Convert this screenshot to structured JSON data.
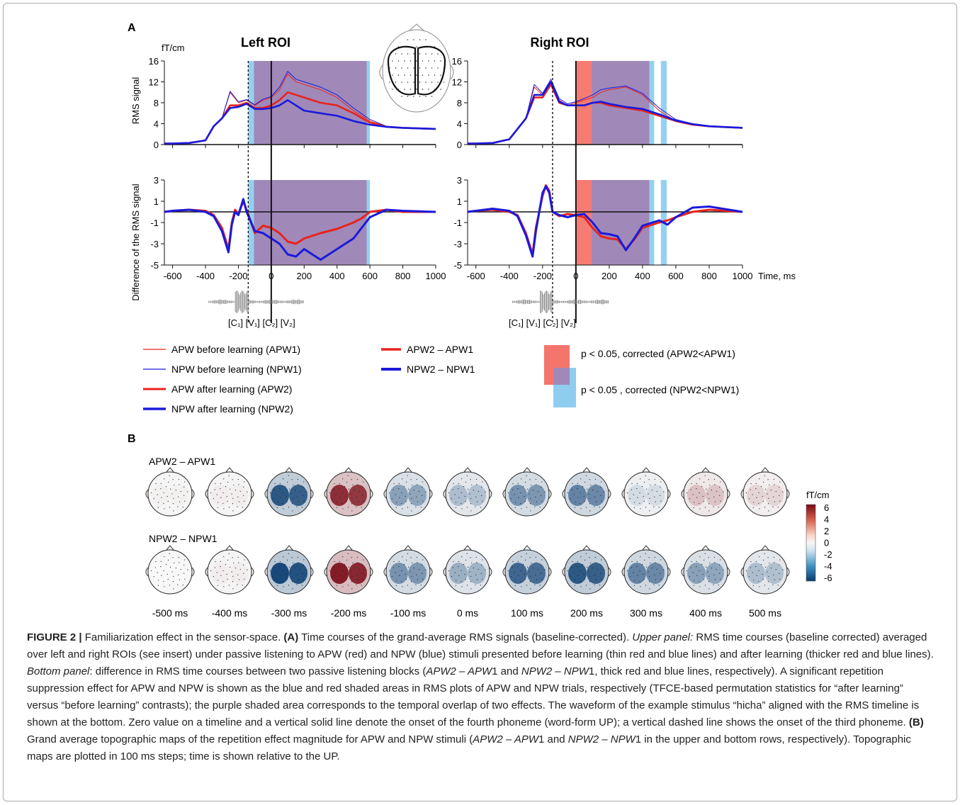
{
  "panel_a": {
    "label": "A",
    "unit": "fT/cm",
    "left_title": "Left ROI",
    "right_title": "Right ROI",
    "ylabel_top": "RMS signal",
    "ylabel_bottom": "Difference of the RMS signal",
    "xlabel": "Time, ms",
    "phoneme_labels": "[C₁] [V₁] [C₂] [V₂]"
  },
  "legend": {
    "apw1": "APW before learning (APW1)",
    "npw1": "NPW before learning (NPW1)",
    "apw2": "APW after learning (APW2)",
    "npw2": "NPW after learning (NPW2)",
    "diff_apw": "APW2 – APW1",
    "diff_npw": "NPW2 – NPW1",
    "sig_apw": "p < 0.05, corrected (APW2<APW1)",
    "sig_npw": "p < 0.05 , corrected (NPW2<NPW1)"
  },
  "panel_b": {
    "label": "B",
    "row1": "APW2 – APW1",
    "row2": "NPW2 – NPW1",
    "times": [
      "-500 ms",
      "-400 ms",
      "-300 ms",
      "-200 ms",
      "-100 ms",
      "0 ms",
      "100 ms",
      "200 ms",
      "300 ms",
      "400 ms",
      "500 ms"
    ],
    "colorbar_unit": "fT/cm",
    "colorbar_ticks": [
      "6",
      "4",
      "2",
      "0",
      "-2",
      "-4",
      "-6"
    ]
  },
  "colors": {
    "apw": "#e8231f",
    "npw": "#1a1adc",
    "sig_apw": "#f4756b",
    "sig_npw": "#8fcdf0",
    "overlap": "#a089b8"
  },
  "chart_data": [
    {
      "type": "line",
      "title": "Left ROI",
      "ylabel": "RMS signal",
      "xlim": [
        -650,
        1000
      ],
      "ylim": [
        0,
        16
      ],
      "x_ticks": [
        -600,
        -400,
        -200,
        0,
        200,
        400,
        600,
        800,
        1000
      ],
      "y_ticks": [
        0,
        4,
        8,
        12,
        16
      ],
      "x": [
        -650,
        -600,
        -500,
        -400,
        -350,
        -300,
        -250,
        -200,
        -150,
        -100,
        -50,
        0,
        50,
        100,
        150,
        200,
        300,
        400,
        500,
        600,
        700,
        800,
        1000
      ],
      "series": [
        {
          "name": "APW before learning (APW1)",
          "values": [
            0.2,
            0.2,
            0.3,
            0.8,
            3.5,
            5.0,
            10.0,
            8.0,
            8.5,
            7.5,
            8.5,
            9.0,
            10.5,
            13.5,
            12.0,
            11.5,
            10.5,
            9.0,
            6.5,
            4.5,
            3.5,
            3.2,
            3.0
          ]
        },
        {
          "name": "NPW before learning (NPW1)",
          "values": [
            0.2,
            0.2,
            0.3,
            0.8,
            3.5,
            5.0,
            10.2,
            8.2,
            8.6,
            7.6,
            8.7,
            9.2,
            11.0,
            14.0,
            12.5,
            12.0,
            11.0,
            9.5,
            7.0,
            4.8,
            3.5,
            3.2,
            3.0
          ]
        },
        {
          "name": "APW after learning (APW2)",
          "values": [
            0.2,
            0.2,
            0.3,
            0.8,
            3.5,
            5.0,
            7.5,
            7.5,
            8.0,
            7.0,
            7.0,
            7.5,
            8.5,
            10.0,
            9.5,
            9.0,
            8.0,
            7.5,
            6.0,
            4.2,
            3.4,
            3.2,
            3.0
          ]
        },
        {
          "name": "NPW after learning (NPW2)",
          "values": [
            0.2,
            0.2,
            0.3,
            0.8,
            3.5,
            5.0,
            7.0,
            7.2,
            7.8,
            6.8,
            6.8,
            7.0,
            7.5,
            8.5,
            7.5,
            6.5,
            6.0,
            5.5,
            4.5,
            3.8,
            3.4,
            3.2,
            3.0
          ]
        }
      ],
      "sig_apw": [
        [
          -105,
          580
        ]
      ],
      "sig_npw": [
        [
          -140,
          600
        ]
      ]
    },
    {
      "type": "line",
      "title": "Left ROI",
      "ylabel": "Difference of the RMS signal",
      "xlim": [
        -650,
        1000
      ],
      "ylim": [
        -5,
        3
      ],
      "x_ticks": [
        -600,
        -400,
        -200,
        0,
        200,
        400,
        600,
        800,
        1000
      ],
      "y_ticks": [
        -5,
        -3,
        -1,
        1,
        3
      ],
      "x": [
        -650,
        -600,
        -500,
        -400,
        -350,
        -300,
        -260,
        -240,
        -220,
        -200,
        -170,
        -150,
        -100,
        -50,
        0,
        50,
        100,
        150,
        200,
        300,
        400,
        500,
        550,
        600,
        700,
        800,
        1000
      ],
      "series": [
        {
          "name": "APW2 – APW1",
          "values": [
            0,
            0.1,
            0.2,
            0.1,
            -0.3,
            -1.5,
            -3.5,
            -1.0,
            0.2,
            -0.2,
            1.0,
            0.2,
            -2.0,
            -1.3,
            -1.5,
            -2.0,
            -2.8,
            -3.0,
            -2.5,
            -2.0,
            -1.6,
            -1.0,
            -0.6,
            0.0,
            0.2,
            0.0,
            0.0
          ]
        },
        {
          "name": "NPW2 – NPW1",
          "values": [
            0,
            0.1,
            0.2,
            0.0,
            -0.4,
            -1.8,
            -3.8,
            -1.2,
            0.0,
            -0.3,
            1.2,
            0.0,
            -1.8,
            -2.0,
            -2.5,
            -3.0,
            -4.0,
            -4.2,
            -3.5,
            -4.5,
            -3.5,
            -2.5,
            -1.5,
            -0.5,
            0.2,
            0.1,
            0.0
          ]
        }
      ],
      "sig_apw": [
        [
          -105,
          580
        ]
      ],
      "sig_npw": [
        [
          -140,
          600
        ]
      ]
    },
    {
      "type": "line",
      "title": "Right ROI",
      "ylabel": "RMS signal",
      "xlim": [
        -650,
        1000
      ],
      "ylim": [
        0,
        16
      ],
      "x_ticks": [
        -600,
        -400,
        -200,
        0,
        200,
        400,
        600,
        800,
        1000
      ],
      "y_ticks": [
        0,
        4,
        8,
        12,
        16
      ],
      "x": [
        -650,
        -600,
        -500,
        -400,
        -350,
        -300,
        -250,
        -200,
        -150,
        -100,
        -50,
        0,
        50,
        100,
        150,
        200,
        300,
        400,
        500,
        600,
        700,
        800,
        1000
      ],
      "series": [
        {
          "name": "APW before learning (APW1)",
          "values": [
            0.2,
            0.2,
            0.3,
            1.0,
            3.0,
            5.0,
            11.0,
            9.5,
            12.0,
            8.5,
            7.5,
            8.0,
            8.5,
            9.0,
            10.0,
            10.5,
            11.0,
            9.5,
            6.5,
            4.5,
            3.8,
            3.5,
            3.2
          ]
        },
        {
          "name": "NPW before learning (NPW1)",
          "values": [
            0.2,
            0.2,
            0.3,
            1.0,
            3.0,
            5.0,
            11.5,
            9.8,
            12.5,
            8.8,
            7.8,
            8.2,
            8.8,
            9.5,
            10.5,
            10.8,
            11.2,
            9.8,
            7.0,
            4.8,
            4.0,
            3.6,
            3.2
          ]
        },
        {
          "name": "APW after learning (APW2)",
          "values": [
            0.2,
            0.2,
            0.3,
            1.0,
            3.0,
            5.0,
            9.0,
            9.0,
            11.5,
            8.0,
            7.5,
            7.5,
            7.5,
            8.0,
            8.0,
            7.5,
            7.0,
            6.5,
            5.5,
            4.5,
            3.8,
            3.5,
            3.2
          ]
        },
        {
          "name": "NPW after learning (NPW2)",
          "values": [
            0.2,
            0.2,
            0.3,
            1.0,
            3.0,
            5.0,
            9.5,
            9.5,
            12.0,
            8.2,
            7.5,
            7.5,
            7.5,
            8.0,
            8.2,
            7.8,
            7.2,
            6.8,
            5.8,
            4.6,
            3.9,
            3.5,
            3.2
          ]
        }
      ],
      "sig_apw": [
        [
          0,
          440
        ]
      ],
      "sig_npw": [
        [
          95,
          470
        ],
        [
          510,
          545
        ]
      ]
    },
    {
      "type": "line",
      "title": "Right ROI",
      "ylabel": "Difference of the RMS signal",
      "xlim": [
        -650,
        1000
      ],
      "ylim": [
        -5,
        3
      ],
      "x_ticks": [
        -600,
        -400,
        -200,
        0,
        200,
        400,
        600,
        800,
        1000
      ],
      "y_ticks": [
        -5,
        -3,
        -1,
        1,
        3
      ],
      "x": [
        -650,
        -600,
        -500,
        -400,
        -350,
        -300,
        -260,
        -240,
        -200,
        -180,
        -160,
        -140,
        -100,
        -50,
        0,
        50,
        100,
        150,
        200,
        250,
        300,
        350,
        400,
        500,
        550,
        600,
        700,
        800,
        1000
      ],
      "series": [
        {
          "name": "APW2 – APW1",
          "values": [
            0,
            0.1,
            0.2,
            0.0,
            -0.3,
            -2.0,
            -4.0,
            -1.5,
            1.5,
            2.5,
            2.0,
            0.0,
            -0.4,
            -0.2,
            -0.3,
            -0.5,
            -1.5,
            -2.3,
            -2.5,
            -2.6,
            -3.5,
            -2.6,
            -1.5,
            -1.0,
            -0.8,
            -0.5,
            0.0,
            0.2,
            0.0
          ]
        },
        {
          "name": "NPW2 – NPW1",
          "values": [
            0,
            0.1,
            0.3,
            0.1,
            -0.4,
            -2.2,
            -4.2,
            -1.8,
            1.8,
            2.4,
            1.8,
            0.0,
            -0.3,
            -0.5,
            -0.3,
            -0.2,
            -1.0,
            -2.0,
            -2.1,
            -2.3,
            -3.6,
            -2.5,
            -1.3,
            -0.8,
            -1.2,
            -0.5,
            0.4,
            0.5,
            0.0
          ]
        }
      ],
      "sig_apw": [
        [
          0,
          440
        ]
      ],
      "sig_npw": [
        [
          95,
          470
        ],
        [
          510,
          545
        ]
      ]
    },
    {
      "type": "heatmap",
      "title": "APW2 – APW1",
      "x": [
        "-500 ms",
        "-400 ms",
        "-300 ms",
        "-200 ms",
        "-100 ms",
        "0 ms",
        "100 ms",
        "200 ms",
        "300 ms",
        "400 ms",
        "500 ms"
      ],
      "values": [
        0.2,
        0.3,
        -5.5,
        5.5,
        -3.0,
        -2.0,
        -3.5,
        -4.0,
        -1.0,
        1.5,
        1.0
      ],
      "ylim": [
        -6,
        6
      ]
    },
    {
      "type": "heatmap",
      "title": "NPW2 – NPW1",
      "x": [
        "-500 ms",
        "-400 ms",
        "-300 ms",
        "-200 ms",
        "-100 ms",
        "0 ms",
        "100 ms",
        "200 ms",
        "300 ms",
        "400 ms",
        "500 ms"
      ],
      "values": [
        0.0,
        0.3,
        -6.0,
        6.0,
        -3.5,
        -2.5,
        -5.0,
        -5.5,
        -4.0,
        -3.0,
        -2.0
      ],
      "ylim": [
        -6,
        6
      ]
    }
  ],
  "caption": {
    "fig_label": "FIGURE 2 |",
    "t1": " Familiarization effect in the sensor-space. ",
    "a": "(A)",
    "t2": " Time courses of the grand-average RMS signals (baseline-corrected). ",
    "upper": "Upper panel:",
    "t3": " RMS time courses (baseline corrected) averaged over left and right ROIs (see insert) under passive listening to APW (red) and NPW (blue) stimuli presented before learning (thin red and blue lines) and after learning (thicker red and blue lines). ",
    "bottom": "Bottom panel",
    "t4": ": difference in RMS time courses between two passive listening blocks (",
    "e1": "APW2 – APW",
    "t5": "1 and ",
    "e2": "NPW2 – NPW",
    "t6": "1, thick red and blue lines, respectively). A significant repetition suppression effect for APW and NPW is shown as the blue and red shaded areas in RMS plots of APW and NPW trials, respectively (TFCE-based permutation statistics for “after learning” versus “before learning” contrasts); the purple shaded area corresponds to the temporal overlap of two effects. The waveform of the example stimulus “hicha” aligned with the RMS timeline is shown at the bottom. Zero value on a timeline and a vertical solid line denote the onset of the fourth phoneme (word-form UP); a vertical dashed line shows the onset of the third phoneme. ",
    "b": "(B)",
    "t7": " Grand average topographic maps of the repetition effect magnitude for APW and NPW stimuli (",
    "e3": "APW2 – APW",
    "t8": "1 and ",
    "e4": "NPW2 – NPW",
    "t9": "1 in the upper and bottom rows, respectively). Topographic maps are plotted in 100 ms steps; time is shown relative to the UP."
  }
}
